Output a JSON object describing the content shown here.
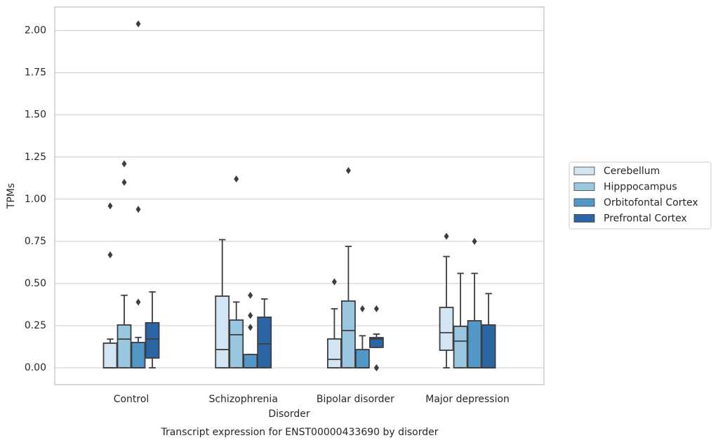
{
  "chart_data": {
    "type": "box",
    "title": "Transcript expression for ENST00000433690 by disorder",
    "x_label": "Disorder",
    "y_label": "TPMs",
    "categories": [
      "Control",
      "Schizophrenia",
      "Bipolar disorder",
      "Major depression"
    ],
    "ylim": [
      -0.1,
      2.14
    ],
    "yticks": [
      {
        "value": 0,
        "label": "0.00"
      },
      {
        "value": 0.25,
        "label": "0.25"
      },
      {
        "value": 0.5,
        "label": "0.50"
      },
      {
        "value": 0.75,
        "label": "0.75"
      },
      {
        "value": 1,
        "label": "1.00"
      },
      {
        "value": 1.25,
        "label": "1.25"
      },
      {
        "value": 1.5,
        "label": "1.50"
      },
      {
        "value": 1.75,
        "label": "1.75"
      },
      {
        "value": 2,
        "label": "2.00"
      }
    ],
    "grid": true,
    "legend": "right",
    "series": [
      {
        "name": "Cerebellum",
        "color": "#d3e4f3",
        "boxes": [
          {
            "min": 0,
            "q1": 0,
            "median": 0,
            "q3": 0.146,
            "max": 0.17,
            "outliers": [
              0.96,
              0.67
            ]
          },
          {
            "min": 0,
            "q1": 0,
            "median": 0.108,
            "q3": 0.425,
            "max": 0.76,
            "outliers": []
          },
          {
            "min": 0,
            "q1": 0,
            "median": 0.05,
            "q3": 0.171,
            "max": 0.35,
            "outliers": [
              0.51
            ]
          },
          {
            "min": 0,
            "q1": 0.104,
            "median": 0.208,
            "q3": 0.358,
            "max": 0.66,
            "outliers": [
              0.78
            ]
          }
        ]
      },
      {
        "name": "Hipppocampus",
        "color": "#9ac7e0",
        "boxes": [
          {
            "min": 0,
            "q1": 0,
            "median": 0.17,
            "q3": 0.254,
            "max": 0.43,
            "outliers": [
              1.21,
              1.1
            ]
          },
          {
            "min": 0,
            "q1": 0,
            "median": 0.196,
            "q3": 0.283,
            "max": 0.39,
            "outliers": [
              1.12
            ]
          },
          {
            "min": 0,
            "q1": 0,
            "median": 0.221,
            "q3": 0.396,
            "max": 0.72,
            "outliers": [
              1.17
            ]
          },
          {
            "min": 0,
            "q1": 0,
            "median": 0.158,
            "q3": 0.246,
            "max": 0.56,
            "outliers": []
          }
        ]
      },
      {
        "name": "Orbitofontal Cortex",
        "color": "#5197c8",
        "boxes": [
          {
            "min": 0,
            "q1": 0,
            "median": 0,
            "q3": 0.15,
            "max": 0.18,
            "outliers": [
              2.04,
              0.94,
              0.39
            ]
          },
          {
            "min": 0,
            "q1": 0,
            "median": 0,
            "q3": 0.079,
            "max": 0.079,
            "outliers": [
              0.43,
              0.31,
              0.24
            ]
          },
          {
            "min": 0,
            "q1": 0,
            "median": 0,
            "q3": 0.108,
            "max": 0.19,
            "outliers": [
              0.35
            ]
          },
          {
            "min": 0,
            "q1": 0,
            "median": 0,
            "q3": 0.279,
            "max": 0.56,
            "outliers": [
              0.75
            ]
          }
        ]
      },
      {
        "name": "Prefrontal Cortex",
        "color": "#2a66a6",
        "boxes": [
          {
            "min": 0,
            "q1": 0.058,
            "median": 0.17,
            "q3": 0.267,
            "max": 0.45,
            "outliers": []
          },
          {
            "min": 0,
            "q1": 0,
            "median": 0.142,
            "q3": 0.3,
            "max": 0.408,
            "outliers": []
          },
          {
            "min": 0.121,
            "q1": 0.121,
            "median": 0.171,
            "q3": 0.179,
            "max": 0.2,
            "outliers": [
              0.35,
              0,
              0
            ]
          },
          {
            "min": 0,
            "q1": 0,
            "median": 0,
            "q3": 0.254,
            "max": 0.44,
            "outliers": []
          }
        ]
      }
    ]
  }
}
